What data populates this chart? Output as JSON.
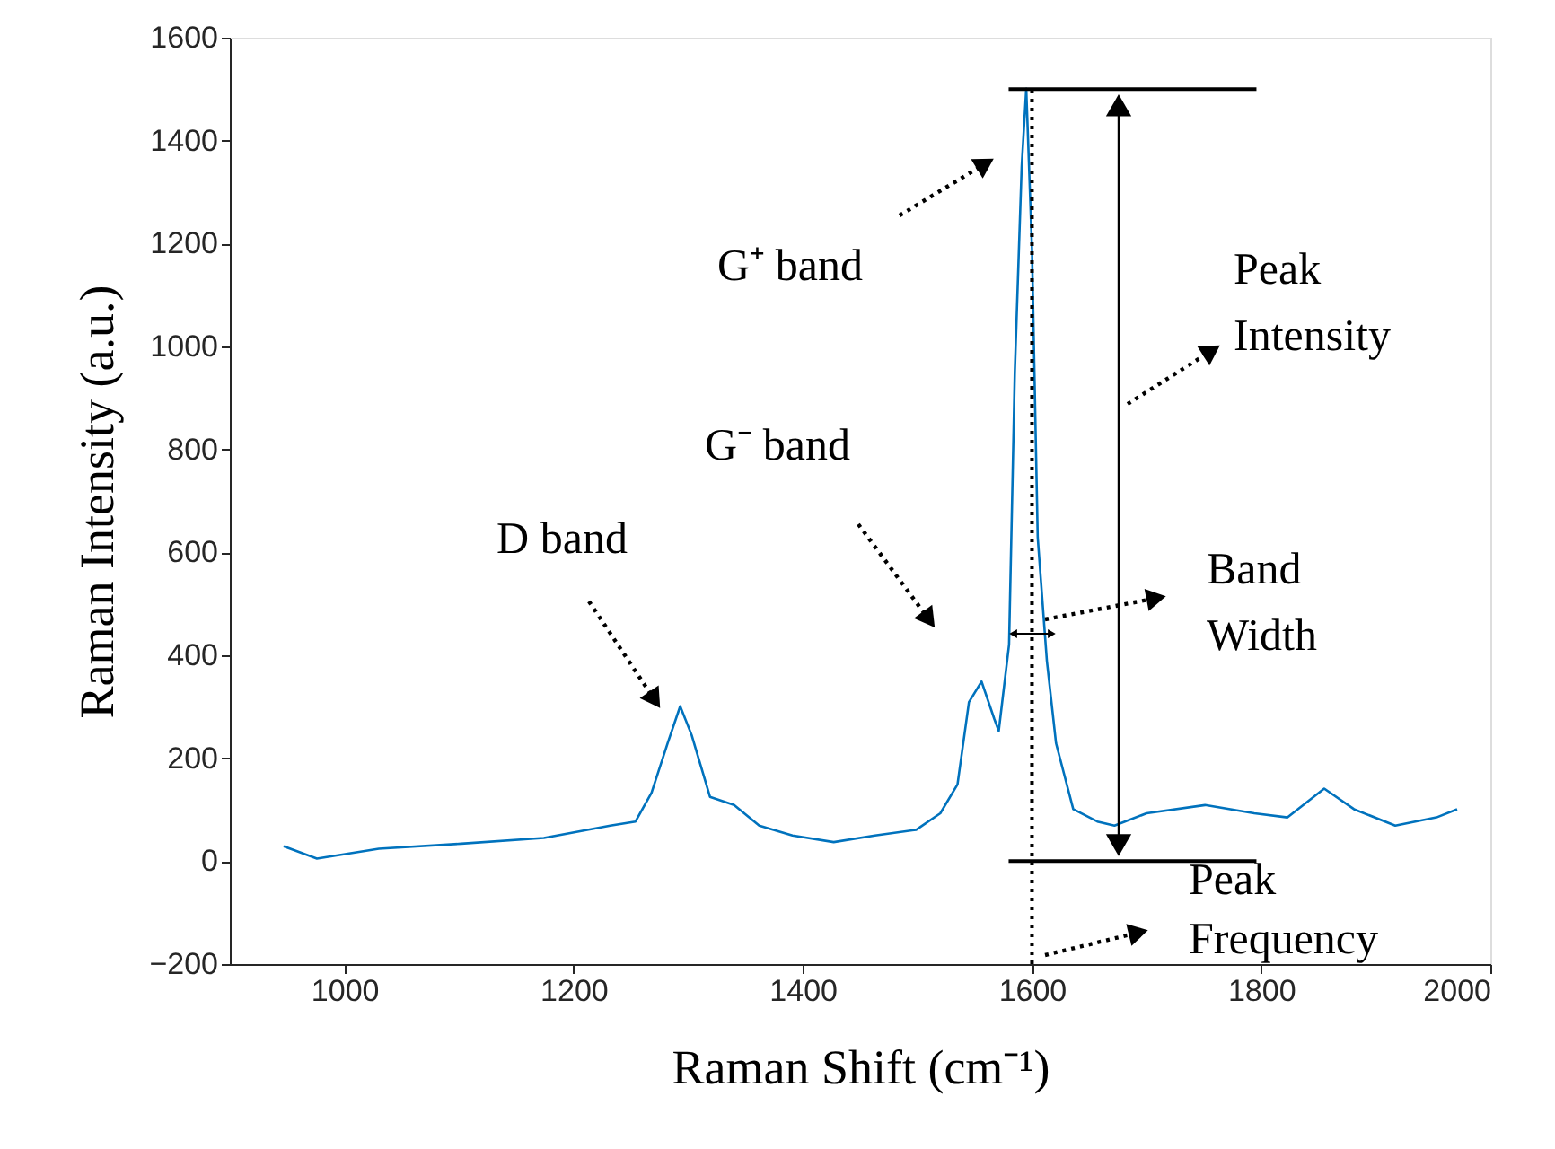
{
  "chart_data": {
    "type": "line",
    "xlabel": "Raman Shift (cm⁻¹)",
    "ylabel": "Raman Intensity (a.u.)",
    "xlim": [
      900,
      2000
    ],
    "xticks": [
      1000,
      1200,
      1400,
      1600,
      1800,
      2000
    ],
    "ylim": [
      -200,
      1600
    ],
    "yticks": [
      -200,
      0,
      200,
      400,
      600,
      800,
      1000,
      1200,
      1400,
      1600
    ],
    "grid": false,
    "marker": "none",
    "line_style": "solid",
    "series": [
      {
        "color": "#0072bd",
        "x": [
          947,
          976,
          1030,
          1102,
          1174,
          1232,
          1254,
          1268,
          1282,
          1293,
          1303,
          1319,
          1340,
          1362,
          1391,
          1427,
          1463,
          1499,
          1520,
          1535,
          1545,
          1556,
          1567,
          1571,
          1580,
          1585,
          1591,
          1595,
          1600,
          1605,
          1613,
          1621,
          1636,
          1657,
          1672,
          1700,
          1751,
          1794,
          1823,
          1855,
          1881,
          1917,
          1953,
          1971
        ],
        "values": [
          29,
          5,
          24,
          34,
          45,
          69,
          77,
          133,
          229,
          301,
          245,
          125,
          109,
          69,
          50,
          37,
          50,
          61,
          93,
          149,
          309,
          349,
          277,
          253,
          421,
          949,
          1349,
          1501,
          1189,
          629,
          389,
          229,
          101,
          77,
          69,
          93,
          109,
          93,
          85,
          141,
          101,
          69,
          85,
          101
        ]
      }
    ],
    "ref_lines": [
      {
        "axis": "x",
        "value": 1600,
        "line_style": "dotted",
        "color": "#000000"
      },
      {
        "axis": "y",
        "value": 1500,
        "line_style": "solid",
        "color": "#000000"
      },
      {
        "axis": "y",
        "value": 0,
        "line_style": "solid",
        "color": "#000000"
      }
    ],
    "annotations": [
      "D band",
      "G⁻ band",
      "G⁺ band",
      "Peak Intensity",
      "Band Width",
      "Peak Frequency"
    ]
  }
}
